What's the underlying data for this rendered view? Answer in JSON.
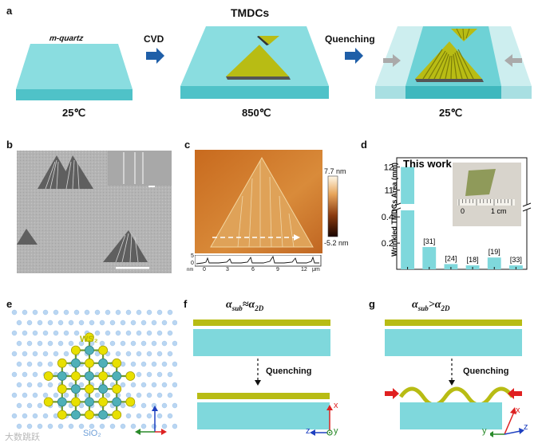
{
  "panel_labels": {
    "a": "a",
    "b": "b",
    "c": "c",
    "d": "d",
    "e": "e",
    "f": "f",
    "g": "g"
  },
  "panel_a": {
    "substrate_label": "m-quartz",
    "step1": "CVD",
    "step2": "Quenching",
    "title": "TMDCs",
    "temps": [
      "25℃",
      "850℃",
      "25℃"
    ],
    "colors": {
      "substrate": "#7fd8dc",
      "substrate_side": "#4fc2c8",
      "tmdc": "#c8c81a",
      "arrow": "#1f5fa8",
      "compress_arrow": "#aaaaaa"
    }
  },
  "panel_c": {
    "scale_max": "7.7 nm",
    "scale_min": "-5.2 nm",
    "profile_y_ticks": [
      "5",
      "0"
    ],
    "profile_y_unit": "nm",
    "profile_x_ticks": [
      "0",
      "3",
      "6",
      "9",
      "12"
    ],
    "profile_x_unit": "μm"
  },
  "chart_data": {
    "type": "bar",
    "title": "This work",
    "ylabel": "Wrinkled TMDCs Area (mm)",
    "categories": [
      "This work",
      "[31]",
      "[24]",
      "[18]",
      "[19]",
      "[33]"
    ],
    "values": [
      12,
      0.17,
      0.04,
      0.03,
      0.09,
      0.03
    ],
    "y_ticks_lower": [
      "0.2",
      "0.4"
    ],
    "y_ticks_upper": [
      "11",
      "12"
    ],
    "axis_break": true,
    "inset_scale": [
      "0",
      "1 cm"
    ],
    "bar_color": "#7fd8dc"
  },
  "panel_e": {
    "ws2_label": "WS₂",
    "sio2_label": "SiO₂",
    "axes": {
      "z": "z",
      "y": "y",
      "x": "x"
    }
  },
  "panel_f": {
    "title": "αsub≈α2D",
    "title_main": "α",
    "sub1": "sub",
    "rel": "≈",
    "sub2": "2D",
    "step": "Quenching",
    "axes": {
      "x": "x",
      "z": "z",
      "y": "y"
    }
  },
  "panel_g": {
    "title_main": "α",
    "sub1": "sub",
    "rel": ">",
    "sub2": "2D",
    "step": "Quenching",
    "axes": {
      "z": "z",
      "x": "x",
      "y": "y"
    }
  },
  "watermark": "大数跳跃"
}
